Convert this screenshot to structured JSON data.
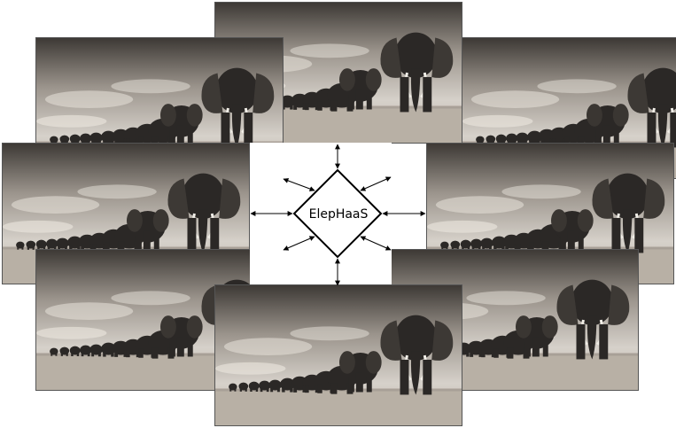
{
  "diagram": {
    "hub": {
      "label": "ElepHaaS"
    },
    "tiles": [
      {
        "name": "elephant-herd-photo",
        "variant": "right"
      },
      {
        "name": "elephant-herd-photo",
        "variant": "right"
      },
      {
        "name": "elephant-herd-photo",
        "variant": "right"
      },
      {
        "name": "elephant-herd-photo",
        "variant": "right"
      },
      {
        "name": "elephant-herd-photo",
        "variant": "right"
      },
      {
        "name": "elephant-herd-photo",
        "variant": "right"
      },
      {
        "name": "elephant-herd-photo",
        "variant": "right"
      },
      {
        "name": "elephant-herd-photo",
        "variant": "right"
      }
    ],
    "colors": {
      "sky_top": "#3d3935",
      "sky_mid": "#9b948c",
      "sky_light": "#d6d1ca",
      "ground": "#b8b0a5",
      "elephant": "#2b2826",
      "tusk": "#f2efe8",
      "line": "#000000"
    }
  }
}
